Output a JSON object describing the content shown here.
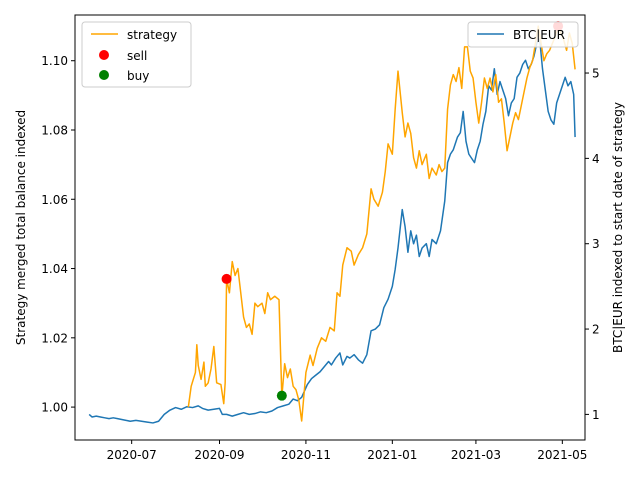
{
  "chart_data": {
    "type": "line",
    "x_axis": {
      "ticks": [
        "2020-07",
        "2020-09",
        "2020-11",
        "2021-01",
        "2021-03",
        "2021-05"
      ],
      "range": [
        "2020-05-22",
        "2021-05-17"
      ]
    },
    "left_axis": {
      "label": "Strategy merged total balance indexed",
      "range": [
        0.9905,
        1.1132
      ],
      "ticks": [
        "1.00",
        "1.02",
        "1.04",
        "1.06",
        "1.08",
        "1.10"
      ]
    },
    "right_axis": {
      "label": "BTC|EUR indexed to start date of strategy",
      "range": [
        0.7,
        5.68
      ],
      "ticks": [
        "1",
        "2",
        "3",
        "4",
        "5"
      ]
    },
    "legend_left": {
      "position": "top-left",
      "entries": [
        "strategy",
        "sell",
        "buy"
      ]
    },
    "legend_right": {
      "position": "top-right",
      "entries": [
        "BTC|EUR"
      ]
    },
    "colors": {
      "strategy": "#ffa500",
      "btc": "#1f77b4",
      "sell": "#ff0000",
      "buy": "#008000"
    },
    "series": [
      {
        "name": "strategy",
        "axis": "left",
        "points": [
          [
            "2020-08-10",
            1.0
          ],
          [
            "2020-08-12",
            1.006
          ],
          [
            "2020-08-15",
            1.01
          ],
          [
            "2020-08-16",
            1.018
          ],
          [
            "2020-08-17",
            1.012
          ],
          [
            "2020-08-19",
            1.008
          ],
          [
            "2020-08-21",
            1.013
          ],
          [
            "2020-08-22",
            1.006
          ],
          [
            "2020-08-24",
            1.007
          ],
          [
            "2020-08-26",
            1.011
          ],
          [
            "2020-08-28",
            1.0175
          ],
          [
            "2020-08-30",
            1.007
          ],
          [
            "2020-09-02",
            1.0065
          ],
          [
            "2020-09-04",
            1.001
          ],
          [
            "2020-09-05",
            1.007
          ],
          [
            "2020-09-06",
            1.037
          ],
          [
            "2020-09-08",
            1.033
          ],
          [
            "2020-09-10",
            1.042
          ],
          [
            "2020-09-12",
            1.038
          ],
          [
            "2020-09-14",
            1.04
          ],
          [
            "2020-09-16",
            1.033
          ],
          [
            "2020-09-18",
            1.026
          ],
          [
            "2020-09-20",
            1.023
          ],
          [
            "2020-09-22",
            1.024
          ],
          [
            "2020-09-24",
            1.021
          ],
          [
            "2020-09-26",
            1.03
          ],
          [
            "2020-09-28",
            1.029
          ],
          [
            "2020-10-01",
            1.03
          ],
          [
            "2020-10-03",
            1.027
          ],
          [
            "2020-10-05",
            1.033
          ],
          [
            "2020-10-07",
            1.031
          ],
          [
            "2020-10-10",
            1.032
          ],
          [
            "2020-10-13",
            1.031
          ],
          [
            "2020-10-15",
            1.003
          ],
          [
            "2020-10-17",
            1.0125
          ],
          [
            "2020-10-19",
            1.0085
          ],
          [
            "2020-10-21",
            1.011
          ],
          [
            "2020-10-23",
            1.006
          ],
          [
            "2020-10-25",
            1.005
          ],
          [
            "2020-10-27",
            1.002
          ],
          [
            "2020-10-29",
            0.996
          ],
          [
            "2020-11-01",
            1.01
          ],
          [
            "2020-11-04",
            1.015
          ],
          [
            "2020-11-06",
            1.012
          ],
          [
            "2020-11-09",
            1.017
          ],
          [
            "2020-11-12",
            1.02
          ],
          [
            "2020-11-15",
            1.019
          ],
          [
            "2020-11-18",
            1.023
          ],
          [
            "2020-11-21",
            1.022
          ],
          [
            "2020-11-23",
            1.033
          ],
          [
            "2020-11-25",
            1.032
          ],
          [
            "2020-11-27",
            1.041
          ],
          [
            "2020-11-30",
            1.046
          ],
          [
            "2020-12-03",
            1.045
          ],
          [
            "2020-12-05",
            1.041
          ],
          [
            "2020-12-08",
            1.044
          ],
          [
            "2020-12-11",
            1.046
          ],
          [
            "2020-12-14",
            1.05
          ],
          [
            "2020-12-17",
            1.063
          ],
          [
            "2020-12-19",
            1.06
          ],
          [
            "2020-12-22",
            1.058
          ],
          [
            "2020-12-25",
            1.062
          ],
          [
            "2020-12-27",
            1.068
          ],
          [
            "2020-12-29",
            1.076
          ],
          [
            "2021-01-01",
            1.073
          ],
          [
            "2021-01-03",
            1.086
          ],
          [
            "2021-01-05",
            1.097
          ],
          [
            "2021-01-08",
            1.085
          ],
          [
            "2021-01-10",
            1.078
          ],
          [
            "2021-01-12",
            1.082
          ],
          [
            "2021-01-14",
            1.079
          ],
          [
            "2021-01-16",
            1.072
          ],
          [
            "2021-01-18",
            1.069
          ],
          [
            "2021-01-20",
            1.074
          ],
          [
            "2021-01-22",
            1.07
          ],
          [
            "2021-01-25",
            1.073
          ],
          [
            "2021-01-27",
            1.066
          ],
          [
            "2021-01-29",
            1.069
          ],
          [
            "2021-02-01",
            1.067
          ],
          [
            "2021-02-03",
            1.07
          ],
          [
            "2021-02-05",
            1.068
          ],
          [
            "2021-02-07",
            1.069
          ],
          [
            "2021-02-09",
            1.086
          ],
          [
            "2021-02-11",
            1.093
          ],
          [
            "2021-02-13",
            1.096
          ],
          [
            "2021-02-15",
            1.094
          ],
          [
            "2021-02-17",
            1.098
          ],
          [
            "2021-02-19",
            1.092
          ],
          [
            "2021-02-21",
            1.104
          ],
          [
            "2021-02-23",
            1.104
          ],
          [
            "2021-02-25",
            1.097
          ],
          [
            "2021-02-27",
            1.095
          ],
          [
            "2021-03-01",
            1.088
          ],
          [
            "2021-03-03",
            1.082
          ],
          [
            "2021-03-05",
            1.088
          ],
          [
            "2021-03-07",
            1.095
          ],
          [
            "2021-03-09",
            1.092
          ],
          [
            "2021-03-11",
            1.095
          ],
          [
            "2021-03-13",
            1.091
          ],
          [
            "2021-03-15",
            1.096
          ],
          [
            "2021-03-17",
            1.088
          ],
          [
            "2021-03-19",
            1.089
          ],
          [
            "2021-03-21",
            1.082
          ],
          [
            "2021-03-23",
            1.074
          ],
          [
            "2021-03-25",
            1.078
          ],
          [
            "2021-03-27",
            1.082
          ],
          [
            "2021-03-29",
            1.085
          ],
          [
            "2021-03-31",
            1.083
          ],
          [
            "2021-04-02",
            1.087
          ],
          [
            "2021-04-04",
            1.091
          ],
          [
            "2021-04-06",
            1.095
          ],
          [
            "2021-04-08",
            1.098
          ],
          [
            "2021-04-10",
            1.1
          ],
          [
            "2021-04-12",
            1.105
          ],
          [
            "2021-04-14",
            1.11
          ],
          [
            "2021-04-16",
            1.105
          ],
          [
            "2021-04-18",
            1.1
          ],
          [
            "2021-04-20",
            1.102
          ],
          [
            "2021-04-22",
            1.103
          ],
          [
            "2021-04-24",
            1.105
          ],
          [
            "2021-04-26",
            1.107
          ],
          [
            "2021-04-28",
            1.11
          ],
          [
            "2021-04-30",
            1.108
          ],
          [
            "2021-05-02",
            1.106
          ],
          [
            "2021-05-04",
            1.103
          ],
          [
            "2021-05-06",
            1.108
          ],
          [
            "2021-05-08",
            1.105
          ],
          [
            "2021-05-10",
            1.0975
          ]
        ]
      },
      {
        "name": "BTC|EUR",
        "axis": "right",
        "points": [
          [
            "2020-06-01",
            1.0
          ],
          [
            "2020-06-03",
            0.97
          ],
          [
            "2020-06-06",
            0.98
          ],
          [
            "2020-06-09",
            0.97
          ],
          [
            "2020-06-12",
            0.96
          ],
          [
            "2020-06-15",
            0.95
          ],
          [
            "2020-06-18",
            0.96
          ],
          [
            "2020-06-21",
            0.95
          ],
          [
            "2020-06-24",
            0.94
          ],
          [
            "2020-06-27",
            0.93
          ],
          [
            "2020-06-30",
            0.92
          ],
          [
            "2020-07-04",
            0.93
          ],
          [
            "2020-07-08",
            0.92
          ],
          [
            "2020-07-12",
            0.91
          ],
          [
            "2020-07-16",
            0.9
          ],
          [
            "2020-07-20",
            0.92
          ],
          [
            "2020-07-24",
            1.0
          ],
          [
            "2020-07-28",
            1.05
          ],
          [
            "2020-08-01",
            1.08
          ],
          [
            "2020-08-05",
            1.06
          ],
          [
            "2020-08-09",
            1.09
          ],
          [
            "2020-08-13",
            1.08
          ],
          [
            "2020-08-17",
            1.1
          ],
          [
            "2020-08-20",
            1.07
          ],
          [
            "2020-08-24",
            1.05
          ],
          [
            "2020-08-28",
            1.06
          ],
          [
            "2020-09-01",
            1.07
          ],
          [
            "2020-09-03",
            1.0
          ],
          [
            "2020-09-06",
            1.0
          ],
          [
            "2020-09-10",
            0.98
          ],
          [
            "2020-09-14",
            1.0
          ],
          [
            "2020-09-18",
            1.02
          ],
          [
            "2020-09-22",
            1.0
          ],
          [
            "2020-09-26",
            1.01
          ],
          [
            "2020-09-30",
            1.03
          ],
          [
            "2020-10-04",
            1.02
          ],
          [
            "2020-10-08",
            1.04
          ],
          [
            "2020-10-12",
            1.08
          ],
          [
            "2020-10-16",
            1.1
          ],
          [
            "2020-10-20",
            1.12
          ],
          [
            "2020-10-23",
            1.18
          ],
          [
            "2020-10-26",
            1.16
          ],
          [
            "2020-10-29",
            1.2
          ],
          [
            "2020-11-02",
            1.35
          ],
          [
            "2020-11-05",
            1.42
          ],
          [
            "2020-11-08",
            1.46
          ],
          [
            "2020-11-11",
            1.5
          ],
          [
            "2020-11-14",
            1.56
          ],
          [
            "2020-11-17",
            1.62
          ],
          [
            "2020-11-19",
            1.58
          ],
          [
            "2020-11-22",
            1.66
          ],
          [
            "2020-11-25",
            1.72
          ],
          [
            "2020-11-27",
            1.58
          ],
          [
            "2020-11-30",
            1.68
          ],
          [
            "2020-12-02",
            1.66
          ],
          [
            "2020-12-05",
            1.7
          ],
          [
            "2020-12-08",
            1.64
          ],
          [
            "2020-12-11",
            1.6
          ],
          [
            "2020-12-14",
            1.7
          ],
          [
            "2020-12-17",
            1.98
          ],
          [
            "2020-12-20",
            2.0
          ],
          [
            "2020-12-23",
            2.05
          ],
          [
            "2020-12-26",
            2.25
          ],
          [
            "2020-12-29",
            2.35
          ],
          [
            "2021-01-01",
            2.5
          ],
          [
            "2021-01-03",
            2.7
          ],
          [
            "2021-01-05",
            2.95
          ],
          [
            "2021-01-08",
            3.4
          ],
          [
            "2021-01-10",
            3.2
          ],
          [
            "2021-01-12",
            2.9
          ],
          [
            "2021-01-14",
            3.15
          ],
          [
            "2021-01-16",
            3.0
          ],
          [
            "2021-01-18",
            3.1
          ],
          [
            "2021-01-20",
            2.85
          ],
          [
            "2021-01-22",
            2.95
          ],
          [
            "2021-01-25",
            3.0
          ],
          [
            "2021-01-27",
            2.85
          ],
          [
            "2021-01-29",
            3.05
          ],
          [
            "2021-02-01",
            3.0
          ],
          [
            "2021-02-04",
            3.15
          ],
          [
            "2021-02-07",
            3.5
          ],
          [
            "2021-02-09",
            3.95
          ],
          [
            "2021-02-11",
            4.05
          ],
          [
            "2021-02-13",
            4.1
          ],
          [
            "2021-02-16",
            4.25
          ],
          [
            "2021-02-18",
            4.3
          ],
          [
            "2021-02-20",
            4.55
          ],
          [
            "2021-02-22",
            4.2
          ],
          [
            "2021-02-24",
            4.05
          ],
          [
            "2021-02-26",
            4.0
          ],
          [
            "2021-02-28",
            3.95
          ],
          [
            "2021-03-02",
            4.1
          ],
          [
            "2021-03-04",
            4.2
          ],
          [
            "2021-03-06",
            4.4
          ],
          [
            "2021-03-08",
            4.55
          ],
          [
            "2021-03-10",
            4.85
          ],
          [
            "2021-03-12",
            4.8
          ],
          [
            "2021-03-14",
            5.05
          ],
          [
            "2021-03-16",
            4.75
          ],
          [
            "2021-03-18",
            4.9
          ],
          [
            "2021-03-20",
            4.8
          ],
          [
            "2021-03-22",
            4.7
          ],
          [
            "2021-03-24",
            4.5
          ],
          [
            "2021-03-26",
            4.65
          ],
          [
            "2021-03-28",
            4.7
          ],
          [
            "2021-03-30",
            4.95
          ],
          [
            "2021-04-01",
            5.0
          ],
          [
            "2021-04-03",
            5.1
          ],
          [
            "2021-04-05",
            5.15
          ],
          [
            "2021-04-07",
            5.05
          ],
          [
            "2021-04-09",
            5.1
          ],
          [
            "2021-04-11",
            5.2
          ],
          [
            "2021-04-13",
            5.35
          ],
          [
            "2021-04-15",
            5.4
          ],
          [
            "2021-04-17",
            5.05
          ],
          [
            "2021-04-19",
            4.8
          ],
          [
            "2021-04-21",
            4.55
          ],
          [
            "2021-04-23",
            4.45
          ],
          [
            "2021-04-25",
            4.4
          ],
          [
            "2021-04-27",
            4.65
          ],
          [
            "2021-04-29",
            4.75
          ],
          [
            "2021-05-01",
            4.85
          ],
          [
            "2021-05-03",
            4.95
          ],
          [
            "2021-05-05",
            4.85
          ],
          [
            "2021-05-07",
            4.9
          ],
          [
            "2021-05-09",
            4.75
          ],
          [
            "2021-05-10",
            4.25
          ]
        ]
      }
    ],
    "markers": [
      {
        "name": "sell",
        "axis": "left",
        "points": [
          [
            "2020-09-06",
            1.037
          ],
          [
            "2021-04-28",
            1.11
          ]
        ]
      },
      {
        "name": "buy",
        "axis": "left",
        "points": [
          [
            "2020-10-15",
            1.0033
          ]
        ]
      }
    ]
  }
}
